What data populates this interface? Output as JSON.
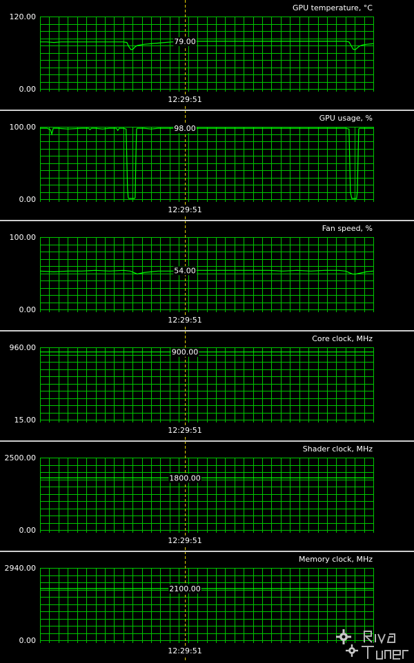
{
  "cursor_time": "12:29:51",
  "colors": {
    "background": "#000000",
    "grid": "#00c800",
    "trace": "#00ff00",
    "cursor": "#e8d000",
    "separator": "#cfcfcf",
    "text": "#ffffff"
  },
  "watermark": {
    "text": "RivaTuner"
  },
  "chart_data": [
    {
      "type": "line",
      "title": "GPU temperature, °C",
      "ylim": [
        0,
        120
      ],
      "ymax_label": "120.00",
      "ymin_label": "0.00",
      "cursor_value_label": "79.00",
      "grid": true,
      "x": [
        0,
        10,
        20,
        30,
        40,
        50,
        60,
        70,
        80,
        90,
        100,
        110,
        120,
        125,
        128,
        131,
        134,
        137,
        140,
        145,
        150,
        160,
        170,
        180,
        190,
        200,
        210,
        220,
        230,
        240,
        250,
        260,
        270,
        280,
        290,
        300,
        310,
        320,
        330,
        340,
        350,
        360,
        370,
        380,
        390,
        400,
        410,
        420,
        430,
        440,
        445,
        448,
        451,
        454,
        457,
        460,
        465,
        470,
        480
      ],
      "series": [
        {
          "values": [
            78,
            78,
            77,
            78,
            78,
            78,
            78,
            78,
            78,
            78,
            78,
            78,
            78,
            77,
            70,
            65,
            66,
            70,
            72,
            73,
            74,
            75,
            76,
            77,
            78,
            78,
            79,
            79,
            79,
            79,
            79,
            79,
            79,
            79,
            79,
            79,
            79,
            79,
            79,
            79,
            79,
            79,
            79,
            79,
            79,
            79,
            79,
            79,
            79,
            79,
            78,
            72,
            66,
            65,
            68,
            71,
            73,
            74,
            75
          ]
        }
      ]
    },
    {
      "type": "line",
      "title": "GPU usage, %",
      "ylim": [
        0,
        100
      ],
      "ymax_label": "100.00",
      "ymin_label": "0.00",
      "cursor_value_label": "98.00",
      "grid": true,
      "x": [
        0,
        10,
        15,
        17,
        19,
        25,
        40,
        60,
        70,
        72,
        74,
        80,
        90,
        100,
        110,
        112,
        114,
        120,
        124,
        125,
        126,
        127,
        128,
        136,
        137,
        138,
        139,
        140,
        150,
        160,
        170,
        180,
        190,
        200,
        210,
        220,
        230,
        240,
        250,
        260,
        270,
        280,
        290,
        300,
        310,
        320,
        330,
        340,
        350,
        360,
        370,
        380,
        390,
        400,
        410,
        420,
        430,
        440,
        445,
        446,
        447,
        449,
        456,
        457,
        458,
        459,
        460,
        470,
        480
      ],
      "series": [
        {
          "values": [
            98,
            98,
            96,
            90,
            98,
            98,
            97,
            98,
            98,
            96,
            98,
            98,
            97,
            98,
            98,
            95,
            98,
            98,
            97,
            55,
            15,
            2,
            1,
            1,
            2,
            55,
            97,
            98,
            98,
            97,
            98,
            98,
            98,
            98,
            98,
            98,
            98,
            98,
            98,
            98,
            98,
            98,
            98,
            98,
            98,
            98,
            98,
            98,
            98,
            98,
            98,
            98,
            98,
            98,
            98,
            98,
            98,
            98,
            97,
            55,
            10,
            1,
            1,
            10,
            55,
            97,
            98,
            98,
            98
          ]
        }
      ]
    },
    {
      "type": "line",
      "title": "Fan speed, %",
      "ylim": [
        0,
        100
      ],
      "ymax_label": "100.00",
      "ymin_label": "0.00",
      "cursor_value_label": "54.00",
      "grid": true,
      "x": [
        0,
        20,
        40,
        60,
        80,
        100,
        120,
        130,
        135,
        140,
        150,
        160,
        170,
        190,
        210,
        230,
        250,
        270,
        290,
        310,
        330,
        350,
        370,
        390,
        410,
        430,
        440,
        445,
        450,
        455,
        460,
        470,
        480
      ],
      "series": [
        {
          "values": [
            53,
            52,
            53,
            53,
            54,
            53,
            54,
            53,
            51,
            49,
            51,
            52,
            53,
            53,
            54,
            54,
            54,
            54,
            54,
            54,
            54,
            53,
            54,
            53,
            54,
            54,
            53,
            51,
            49,
            49,
            50,
            52,
            53
          ]
        }
      ]
    },
    {
      "type": "line",
      "title": "Core clock, MHz",
      "ylim": [
        15,
        960
      ],
      "ymax_label": "960.00",
      "ymin_label": "15.00",
      "cursor_value_label": "900.00",
      "grid": true,
      "x": [
        0,
        480
      ],
      "series": [
        {
          "values": [
            900,
            900
          ]
        }
      ]
    },
    {
      "type": "line",
      "title": "Shader clock, MHz",
      "ylim": [
        0,
        2500
      ],
      "ymax_label": "2500.00",
      "ymin_label": "0.00",
      "cursor_value_label": "1800.00",
      "grid": true,
      "x": [
        0,
        480
      ],
      "series": [
        {
          "values": [
            1800,
            1800
          ]
        }
      ]
    },
    {
      "type": "line",
      "title": "Memory clock, MHz",
      "ylim": [
        0,
        2940
      ],
      "ymax_label": "2940.00",
      "ymin_label": "0.00",
      "cursor_value_label": "2100.00",
      "grid": true,
      "x": [
        0,
        480
      ],
      "series": [
        {
          "values": [
            2100,
            2100
          ]
        }
      ]
    }
  ]
}
